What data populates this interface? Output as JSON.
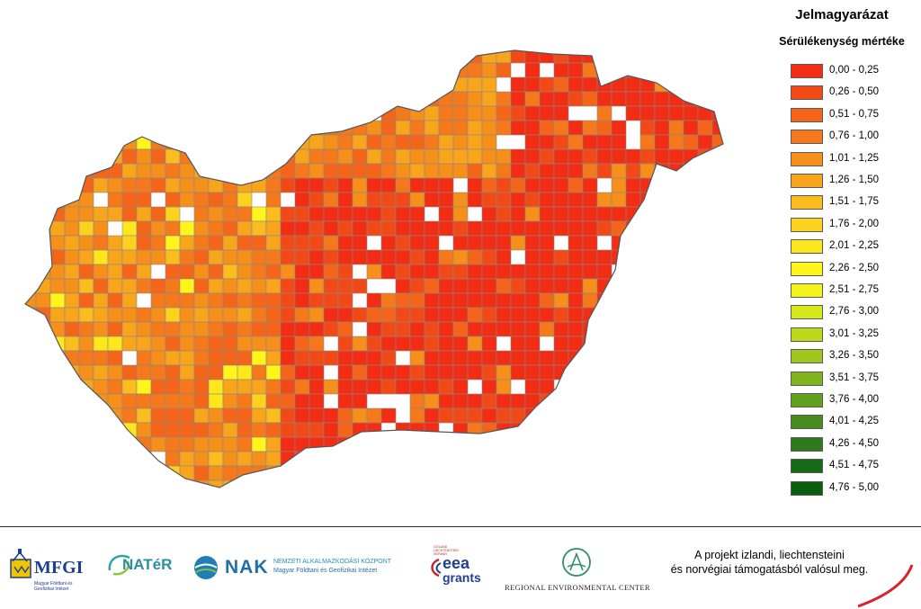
{
  "legend": {
    "title": "Jelmagyarázat",
    "subtitle": "Sérülékenység mértéke",
    "classes": [
      {
        "label": "0,00 - 0,25",
        "color": "#f22d14"
      },
      {
        "label": "0,26 - 0,50",
        "color": "#f24a16"
      },
      {
        "label": "0,51 - 0,75",
        "color": "#f46419"
      },
      {
        "label": "0,76 - 1,00",
        "color": "#f5791b"
      },
      {
        "label": "1,01 - 1,25",
        "color": "#f7901b"
      },
      {
        "label": "1,26 - 1,50",
        "color": "#f9a51c"
      },
      {
        "label": "1,51 - 1,75",
        "color": "#fbbd1e"
      },
      {
        "label": "1,76 - 2,00",
        "color": "#fdd21e"
      },
      {
        "label": "2,01 - 2,25",
        "color": "#fee61c"
      },
      {
        "label": "2,26 - 2,50",
        "color": "#fff41c"
      },
      {
        "label": "2,51 - 2,75",
        "color": "#f2f41c"
      },
      {
        "label": "2,76 - 3,00",
        "color": "#d7e81c"
      },
      {
        "label": "3,01 - 3,25",
        "color": "#bcd81a"
      },
      {
        "label": "3,26 - 3,50",
        "color": "#9dc71c"
      },
      {
        "label": "3,51 - 3,75",
        "color": "#7fb41e"
      },
      {
        "label": "3,76 - 4,00",
        "color": "#62a020"
      },
      {
        "label": "4,01 - 4,25",
        "color": "#468c20"
      },
      {
        "label": "4,26 - 4,50",
        "color": "#2c7a1c"
      },
      {
        "label": "4,51 - 4,75",
        "color": "#186b16"
      },
      {
        "label": "4,76 - 5,00",
        "color": "#0a5c0e"
      }
    ]
  },
  "map": {
    "boundary_color": "#555555",
    "grid_line_color": "#888888"
  },
  "footer": {
    "text_line1": "A projekt izlandi, liechtensteini",
    "text_line2": "és norvégiai támogatásból valósul meg.",
    "logos": {
      "mfgi": "MFGI",
      "mfgi_sub": "Magyar Földtani és Geofizikai Intézet",
      "nater": "NATéR",
      "nak": "NAK",
      "nak_line1": "NEMZETI ALKALMAZKODÁSI KÖZPONT",
      "nak_line2": "Magyar Földtani és Geofizikai Intézet",
      "eea_small": "ICELAND LIECHTENSTEIN NORWAY",
      "eea_line1": "eea",
      "eea_line2": "grants",
      "rec": "REGIONAL ENVIRONMENTAL CENTER"
    },
    "accent_color": "#d8222a"
  }
}
